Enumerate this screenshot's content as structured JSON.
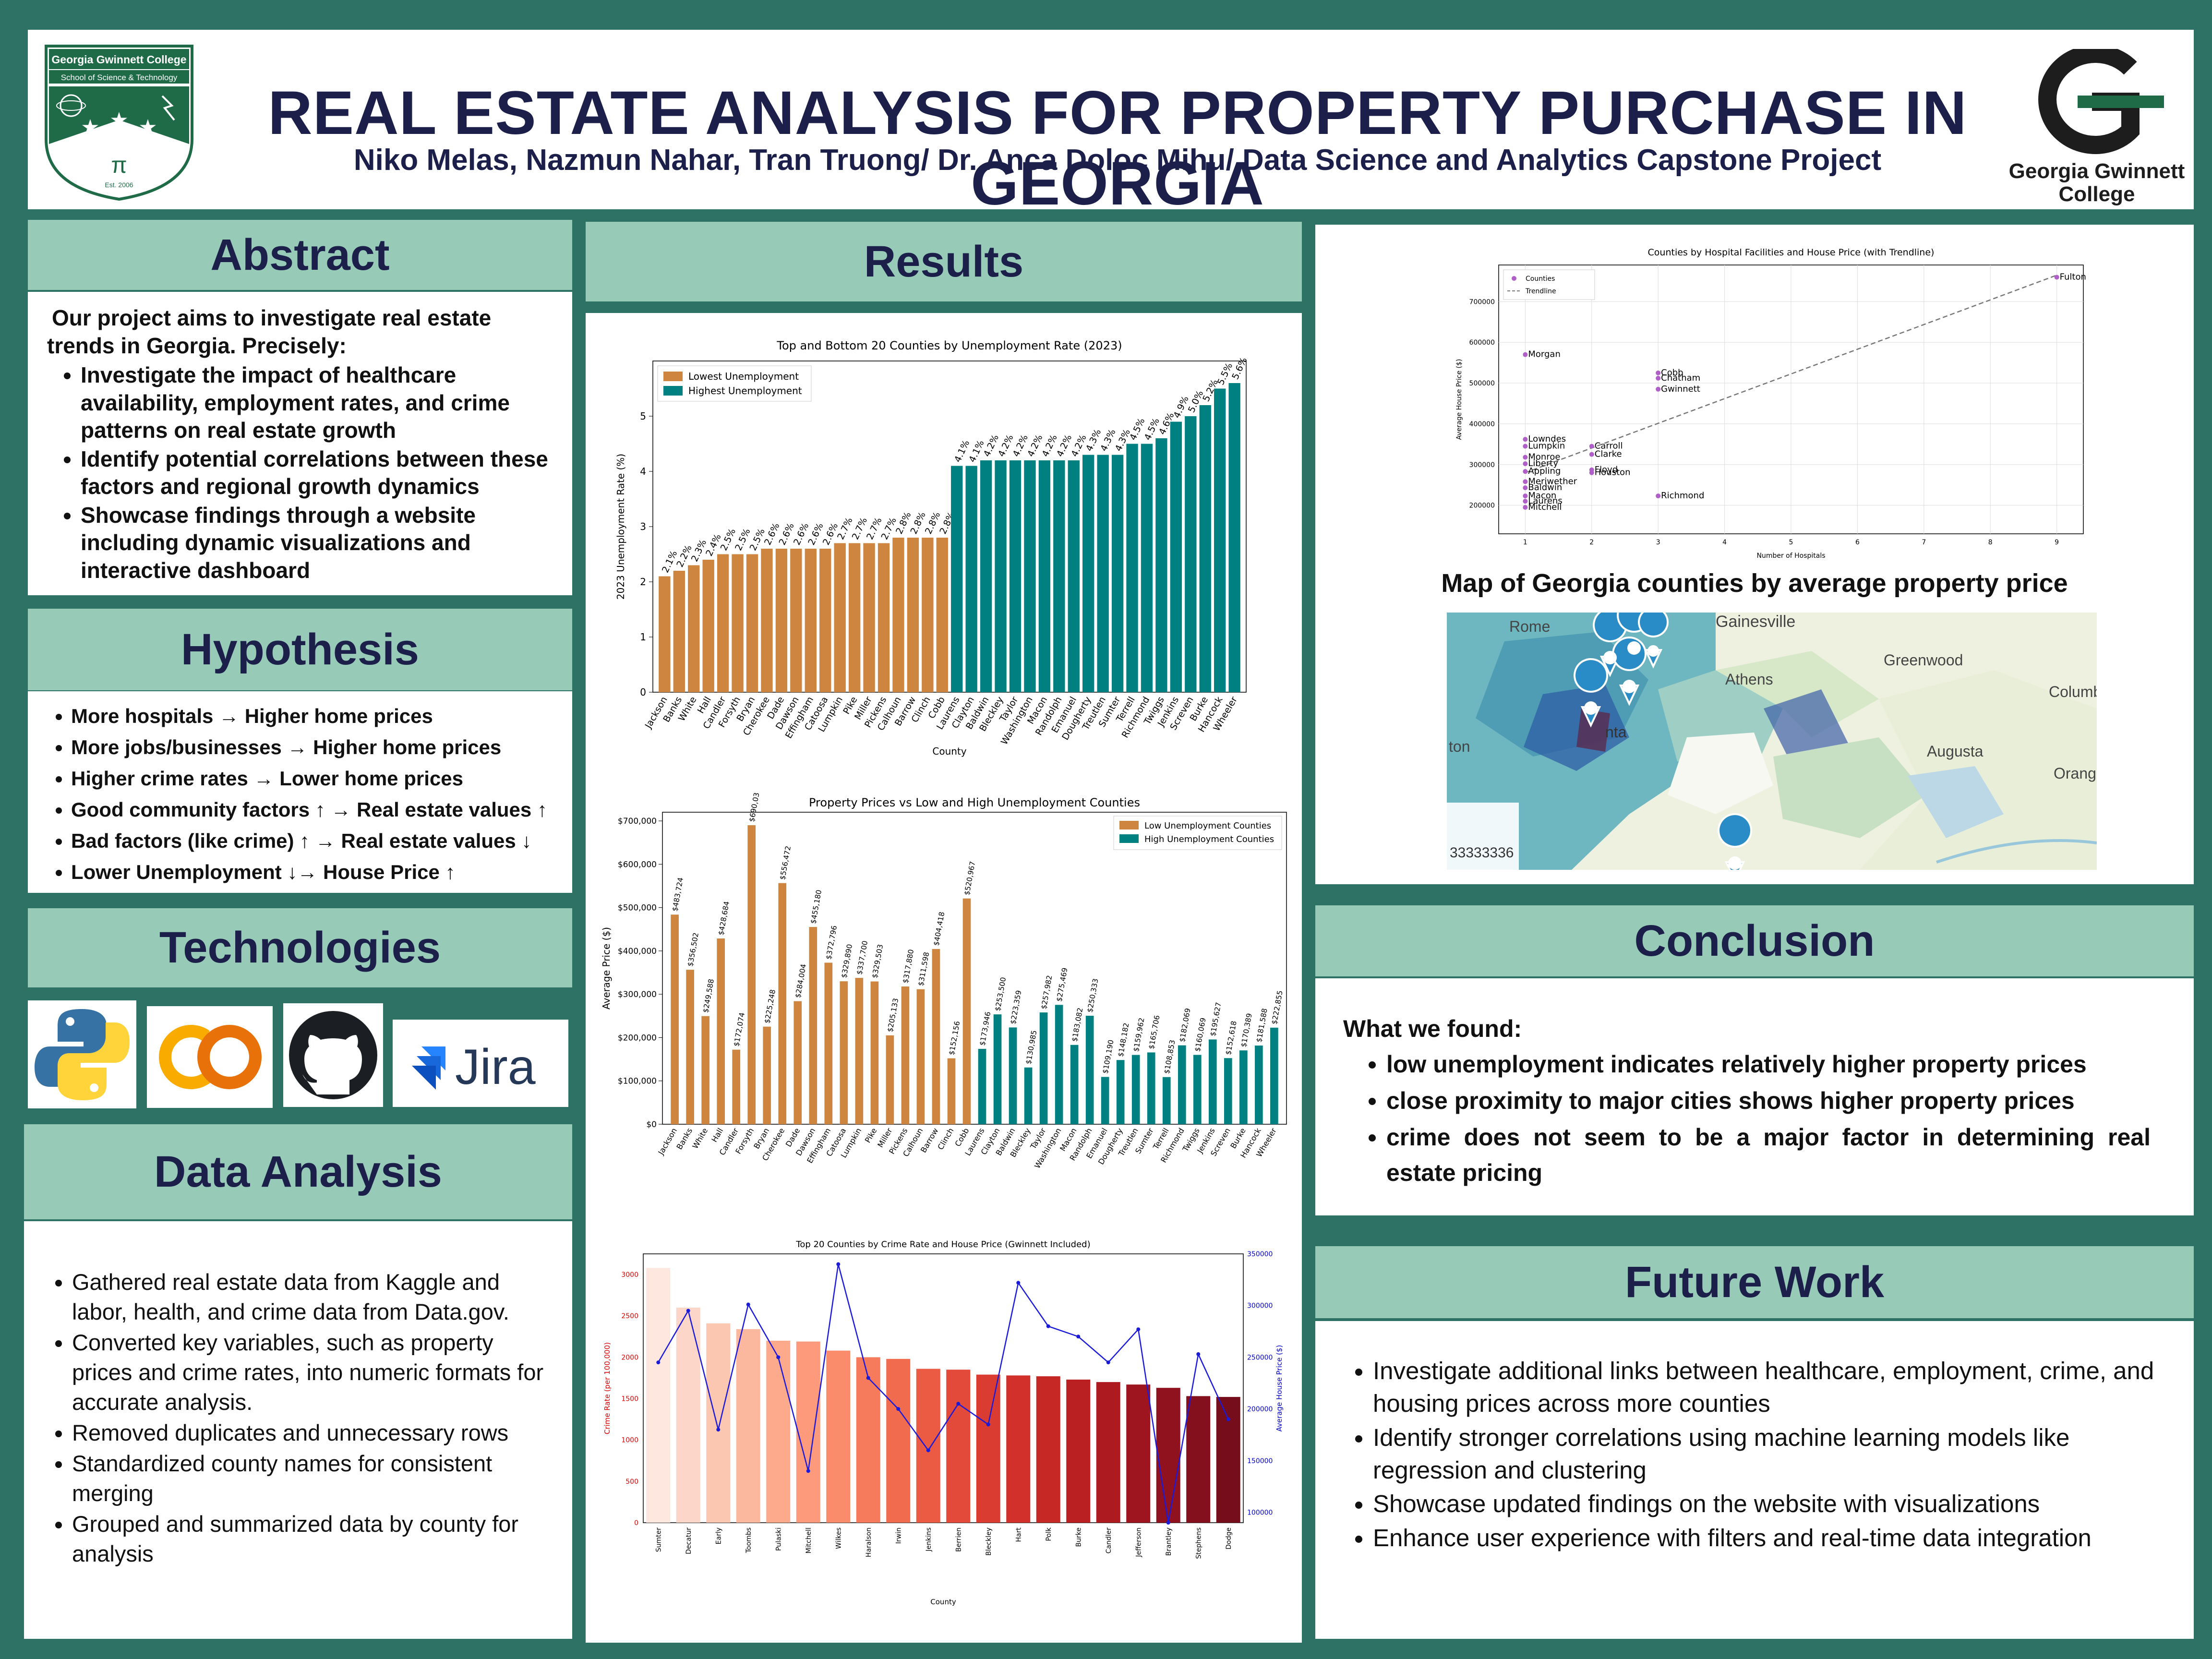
{
  "header": {
    "title": "REAL ESTATE ANALYSIS FOR PROPERTY PURCHASE IN GEORGIA",
    "authors": "Niko Melas, Nazmun Nahar, Tran Truong/  Dr. Anca Doloc Mihu/ Data Science and Analytics Capstone Project",
    "left_logo_line1": "Georgia Gwinnett College",
    "left_logo_line2": "School of Science & Technology",
    "left_logo_est": "Est. 2006",
    "right_logo_line1": "Georgia Gwinnett",
    "right_logo_line2": "College"
  },
  "abstract": {
    "title": "Abstract",
    "intro": "Our project aims to investigate real estate trends in Georgia. Precisely:",
    "items": [
      "Investigate the impact of healthcare availability, employment rates, and crime patterns on real estate growth",
      "Identify potential correlations between these factors and regional growth dynamics",
      "Showcase findings through a website including dynamic visualizations and interactive dashboard"
    ]
  },
  "hypothesis": {
    "title": "Hypothesis",
    "items": [
      "More hospitals → Higher home prices",
      "More jobs/businesses → Higher home prices",
      "Higher crime rates → Lower home prices",
      "Good community factors ↑ → Real estate values ↑",
      "Bad factors (like crime) ↑ → Real estate values ↓",
      "Lower Unemployment ↓→ House Price ↑"
    ]
  },
  "technologies": {
    "title": "Technologies",
    "logos": [
      "python-icon",
      "colab-icon",
      "github-icon",
      "jira-icon"
    ],
    "jira_label": "Jira",
    "colab_label": "CO"
  },
  "data_analysis": {
    "title": "Data Analysis",
    "items": [
      "Gathered real estate data from Kaggle and labor, health, and crime data from Data.gov.",
      "Converted key variables, such as property prices and crime rates, into numeric formats for accurate analysis.",
      "Removed duplicates and unnecessary rows",
      "Standardized county names for consistent merging",
      "Grouped and summarized data by county for analysis"
    ]
  },
  "results": {
    "title": "Results"
  },
  "map": {
    "title": "Map of Georgia counties by average property price",
    "labels": [
      "Rome",
      "Gainesville",
      "Athens",
      "Greenwood",
      "Columbi",
      "Augusta",
      "Orang",
      "nta",
      "ton",
      "33333336"
    ]
  },
  "conclusion": {
    "title": "Conclusion",
    "lead": "What we found:",
    "items": [
      "low unemployment indicates relatively higher property prices",
      "close proximity to major cities shows higher property prices",
      "crime does not seem to be a major factor in determining real estate pricing"
    ]
  },
  "future": {
    "title": "Future Work",
    "items": [
      "Investigate additional links between healthcare, employment, crime, and housing prices across more counties",
      "Identify stronger correlations using machine learning models like regression and clustering",
      "Showcase updated findings on the website with visualizations",
      "Enhance user experience with filters and real-time data integration"
    ]
  },
  "chart_data": [
    {
      "type": "bar",
      "title": "Top and Bottom 20 Counties by Unemployment Rate (2023)",
      "xlabel": "County",
      "ylabel": "2023 Unemployment Rate (%)",
      "ylim": [
        0,
        6
      ],
      "yticks": [
        0,
        1,
        2,
        3,
        4,
        5
      ],
      "legend": [
        "Lowest Unemployment",
        "Highest Unemployment"
      ],
      "legend_placement": "top-left",
      "colors": [
        "#cd853f",
        "#008080"
      ],
      "categories": [
        "Jackson",
        "Banks",
        "White",
        "Hall",
        "Candler",
        "Forsyth",
        "Bryan",
        "Cherokee",
        "Dade",
        "Dawson",
        "Effingham",
        "Catoosa",
        "Lumpkin",
        "Pike",
        "Miller",
        "Pickens",
        "Calhoun",
        "Barrow",
        "Clinch",
        "Cobb",
        "Laurens",
        "Clayton",
        "Baldwin",
        "Bleckley",
        "Taylor",
        "Washington",
        "Macon",
        "Randolph",
        "Emanuel",
        "Dougherty",
        "Treutlen",
        "Sumter",
        "Terrell",
        "Richmond",
        "Twiggs",
        "Jenkins",
        "Screven",
        "Burke",
        "Hancock",
        "Wheeler"
      ],
      "values": [
        2.1,
        2.2,
        2.3,
        2.4,
        2.5,
        2.5,
        2.5,
        2.6,
        2.6,
        2.6,
        2.6,
        2.6,
        2.7,
        2.7,
        2.7,
        2.7,
        2.8,
        2.8,
        2.8,
        2.8,
        4.1,
        4.1,
        4.2,
        4.2,
        4.2,
        4.2,
        4.2,
        4.2,
        4.2,
        4.3,
        4.3,
        4.3,
        4.5,
        4.5,
        4.6,
        4.9,
        5.0,
        5.2,
        5.5,
        5.6
      ],
      "labels": [
        "2.1%",
        "2.2%",
        "2.3%",
        "2.4%",
        "2.5%",
        "2.5%",
        "2.5%",
        "2.6%",
        "2.6%",
        "2.6%",
        "2.6%",
        "2.6%",
        "2.7%",
        "2.7%",
        "2.7%",
        "2.7%",
        "2.8%",
        "2.8%",
        "2.8%",
        "2.8%",
        "4.1%",
        "4.1%",
        "4.2%",
        "4.2%",
        "4.2%",
        "4.2%",
        "4.2%",
        "4.2%",
        "4.2%",
        "4.3%",
        "4.3%",
        "4.3%",
        "4.5%",
        "4.5%",
        "4.6%",
        "4.9%",
        "5.0%",
        "5.2%",
        "5.5%",
        "5.6%"
      ]
    },
    {
      "type": "bar",
      "title": "Property Prices vs Low and High Unemployment Counties",
      "xlabel": "",
      "ylabel": "Average Price ($)",
      "ylim": [
        0,
        720000
      ],
      "yticks": [
        0,
        100000,
        200000,
        300000,
        400000,
        500000,
        600000,
        700000
      ],
      "ytick_labels": [
        "$0",
        "$100,000",
        "$200,000",
        "$300,000",
        "$400,000",
        "$500,000",
        "$600,000",
        "$700,000"
      ],
      "legend": [
        "Low Unemployment Counties",
        "High Unemployment Counties"
      ],
      "legend_placement": "top-right",
      "colors": [
        "#cd853f",
        "#008080"
      ],
      "categories": [
        "Jackson",
        "Banks",
        "White",
        "Hall",
        "Candler",
        "Forsyth",
        "Bryan",
        "Cherokee",
        "Dade",
        "Dawson",
        "Effingham",
        "Catoosa",
        "Lumpkin",
        "Pike",
        "Miller",
        "Pickens",
        "Calhoun",
        "Barrow",
        "Clinch",
        "Cobb",
        "Laurens",
        "Clayton",
        "Baldwin",
        "Bleckley",
        "Taylor",
        "Washington",
        "Macon",
        "Randolph",
        "Emanuel",
        "Dougherty",
        "Treutlen",
        "Sumter",
        "Terrell",
        "Richmond",
        "Twiggs",
        "Jenkins",
        "Screven",
        "Burke",
        "Hancock",
        "Wheeler"
      ],
      "values": [
        483724,
        356502,
        249588,
        428684,
        172074,
        690035,
        225248,
        556472,
        284004,
        455180,
        372796,
        329890,
        337700,
        329503,
        205133,
        317880,
        311598,
        404418,
        152156,
        520967,
        173946,
        253500,
        223359,
        130985,
        257982,
        275469,
        183082,
        250333,
        109190,
        148182,
        159962,
        165706,
        108853,
        182069,
        160069,
        195627,
        152618,
        170389,
        181588,
        222855
      ],
      "labels": [
        "$483,724",
        "$356,502",
        "$249,588",
        "$428,684",
        "$172,074",
        "$690,035",
        "$225,248",
        "$556,472",
        "$284,004",
        "$455,180",
        "$372,796",
        "$329,890",
        "$337,700",
        "$329,503",
        "$205,133",
        "$317,880",
        "$311,598",
        "$404,418",
        "$152,156",
        "$520,967",
        "$173,946",
        "$253,500",
        "$223,359",
        "$130,985",
        "$257,982",
        "$275,469",
        "$183,082",
        "$250,333",
        "$109,190",
        "$148,182",
        "$159,962",
        "$165,706",
        "$108,853",
        "$182,069",
        "$160,069",
        "$195,627",
        "$152,618",
        "$170,389",
        "$181,588",
        "$222,855"
      ]
    },
    {
      "type": "bar",
      "title": "Top 20 Counties by Crime Rate and House Price (Gwinnett Included)",
      "xlabel": "County",
      "ylabel": "Crime Rate (per 100,000)",
      "y2label": "Average House Price ($)",
      "ylim": [
        0,
        3250
      ],
      "yticks": [
        0,
        500,
        1000,
        1500,
        2000,
        2500,
        3000
      ],
      "y2lim": [
        90000,
        350000
      ],
      "y2ticks": [
        100000,
        150000,
        200000,
        250000,
        300000,
        350000
      ],
      "categories": [
        "Sumter",
        "Decatur",
        "Early",
        "Toombs",
        "Pulaski",
        "Mitchell",
        "Wilkes",
        "Haralson",
        "Irwin",
        "Jenkins",
        "Berrien",
        "Bleckley",
        "Hart",
        "Polk",
        "Burke",
        "Candler",
        "Jefferson",
        "Brantley",
        "Stephens",
        "Dodge"
      ],
      "values": [
        3080,
        2600,
        2410,
        2340,
        2200,
        2190,
        2080,
        2000,
        1980,
        1860,
        1850,
        1790,
        1780,
        1770,
        1730,
        1700,
        1670,
        1630,
        1530,
        1520
      ],
      "line": [
        245000,
        295000,
        180000,
        301000,
        250000,
        140000,
        340000,
        230000,
        200000,
        160000,
        205000,
        185000,
        322000,
        280000,
        270000,
        245000,
        277000,
        90000,
        253000,
        190000
      ]
    },
    {
      "type": "scatter",
      "title": "Counties by Hospital Facilities and House Price (with Trendline)",
      "xlabel": "Number of Hospitals",
      "ylabel": "Average House Price ($)",
      "xlim": [
        0.6,
        9.4
      ],
      "ylim": [
        130000,
        790000
      ],
      "xticks": [
        1,
        2,
        3,
        4,
        5,
        6,
        7,
        8,
        9
      ],
      "yticks": [
        200000,
        300000,
        400000,
        500000,
        600000,
        700000
      ],
      "legend": [
        "Counties",
        "Trendline"
      ],
      "legend_placement": "top-left",
      "points": [
        {
          "name": "Fulton",
          "x": 9,
          "y": 760000
        },
        {
          "name": "Morgan",
          "x": 1,
          "y": 570000
        },
        {
          "name": "Cobb",
          "x": 3,
          "y": 525000
        },
        {
          "name": "Chatham",
          "x": 3,
          "y": 512000
        },
        {
          "name": "Gwinnett",
          "x": 3,
          "y": 485000
        },
        {
          "name": "Lowndes",
          "x": 1,
          "y": 362000
        },
        {
          "name": "Lumpkin",
          "x": 1,
          "y": 345000
        },
        {
          "name": "Carroll",
          "x": 2,
          "y": 345000
        },
        {
          "name": "Clarke",
          "x": 2,
          "y": 325000
        },
        {
          "name": "Monroe",
          "x": 1,
          "y": 318000
        },
        {
          "name": "Liberty",
          "x": 1,
          "y": 302000
        },
        {
          "name": "Floyd",
          "x": 2,
          "y": 287000
        },
        {
          "name": "Houston",
          "x": 2,
          "y": 280000
        },
        {
          "name": "Appling",
          "x": 1,
          "y": 283000
        },
        {
          "name": "Meriwether",
          "x": 1,
          "y": 258000
        },
        {
          "name": "Baldwin",
          "x": 1,
          "y": 243000
        },
        {
          "name": "Macon",
          "x": 1,
          "y": 223000
        },
        {
          "name": "Laurens",
          "x": 1,
          "y": 210000
        },
        {
          "name": "Mitchell",
          "x": 1,
          "y": 195000
        },
        {
          "name": "Richmond",
          "x": 3,
          "y": 223000
        }
      ],
      "trend": [
        [
          1,
          280000
        ],
        [
          9,
          765000
        ]
      ]
    }
  ]
}
